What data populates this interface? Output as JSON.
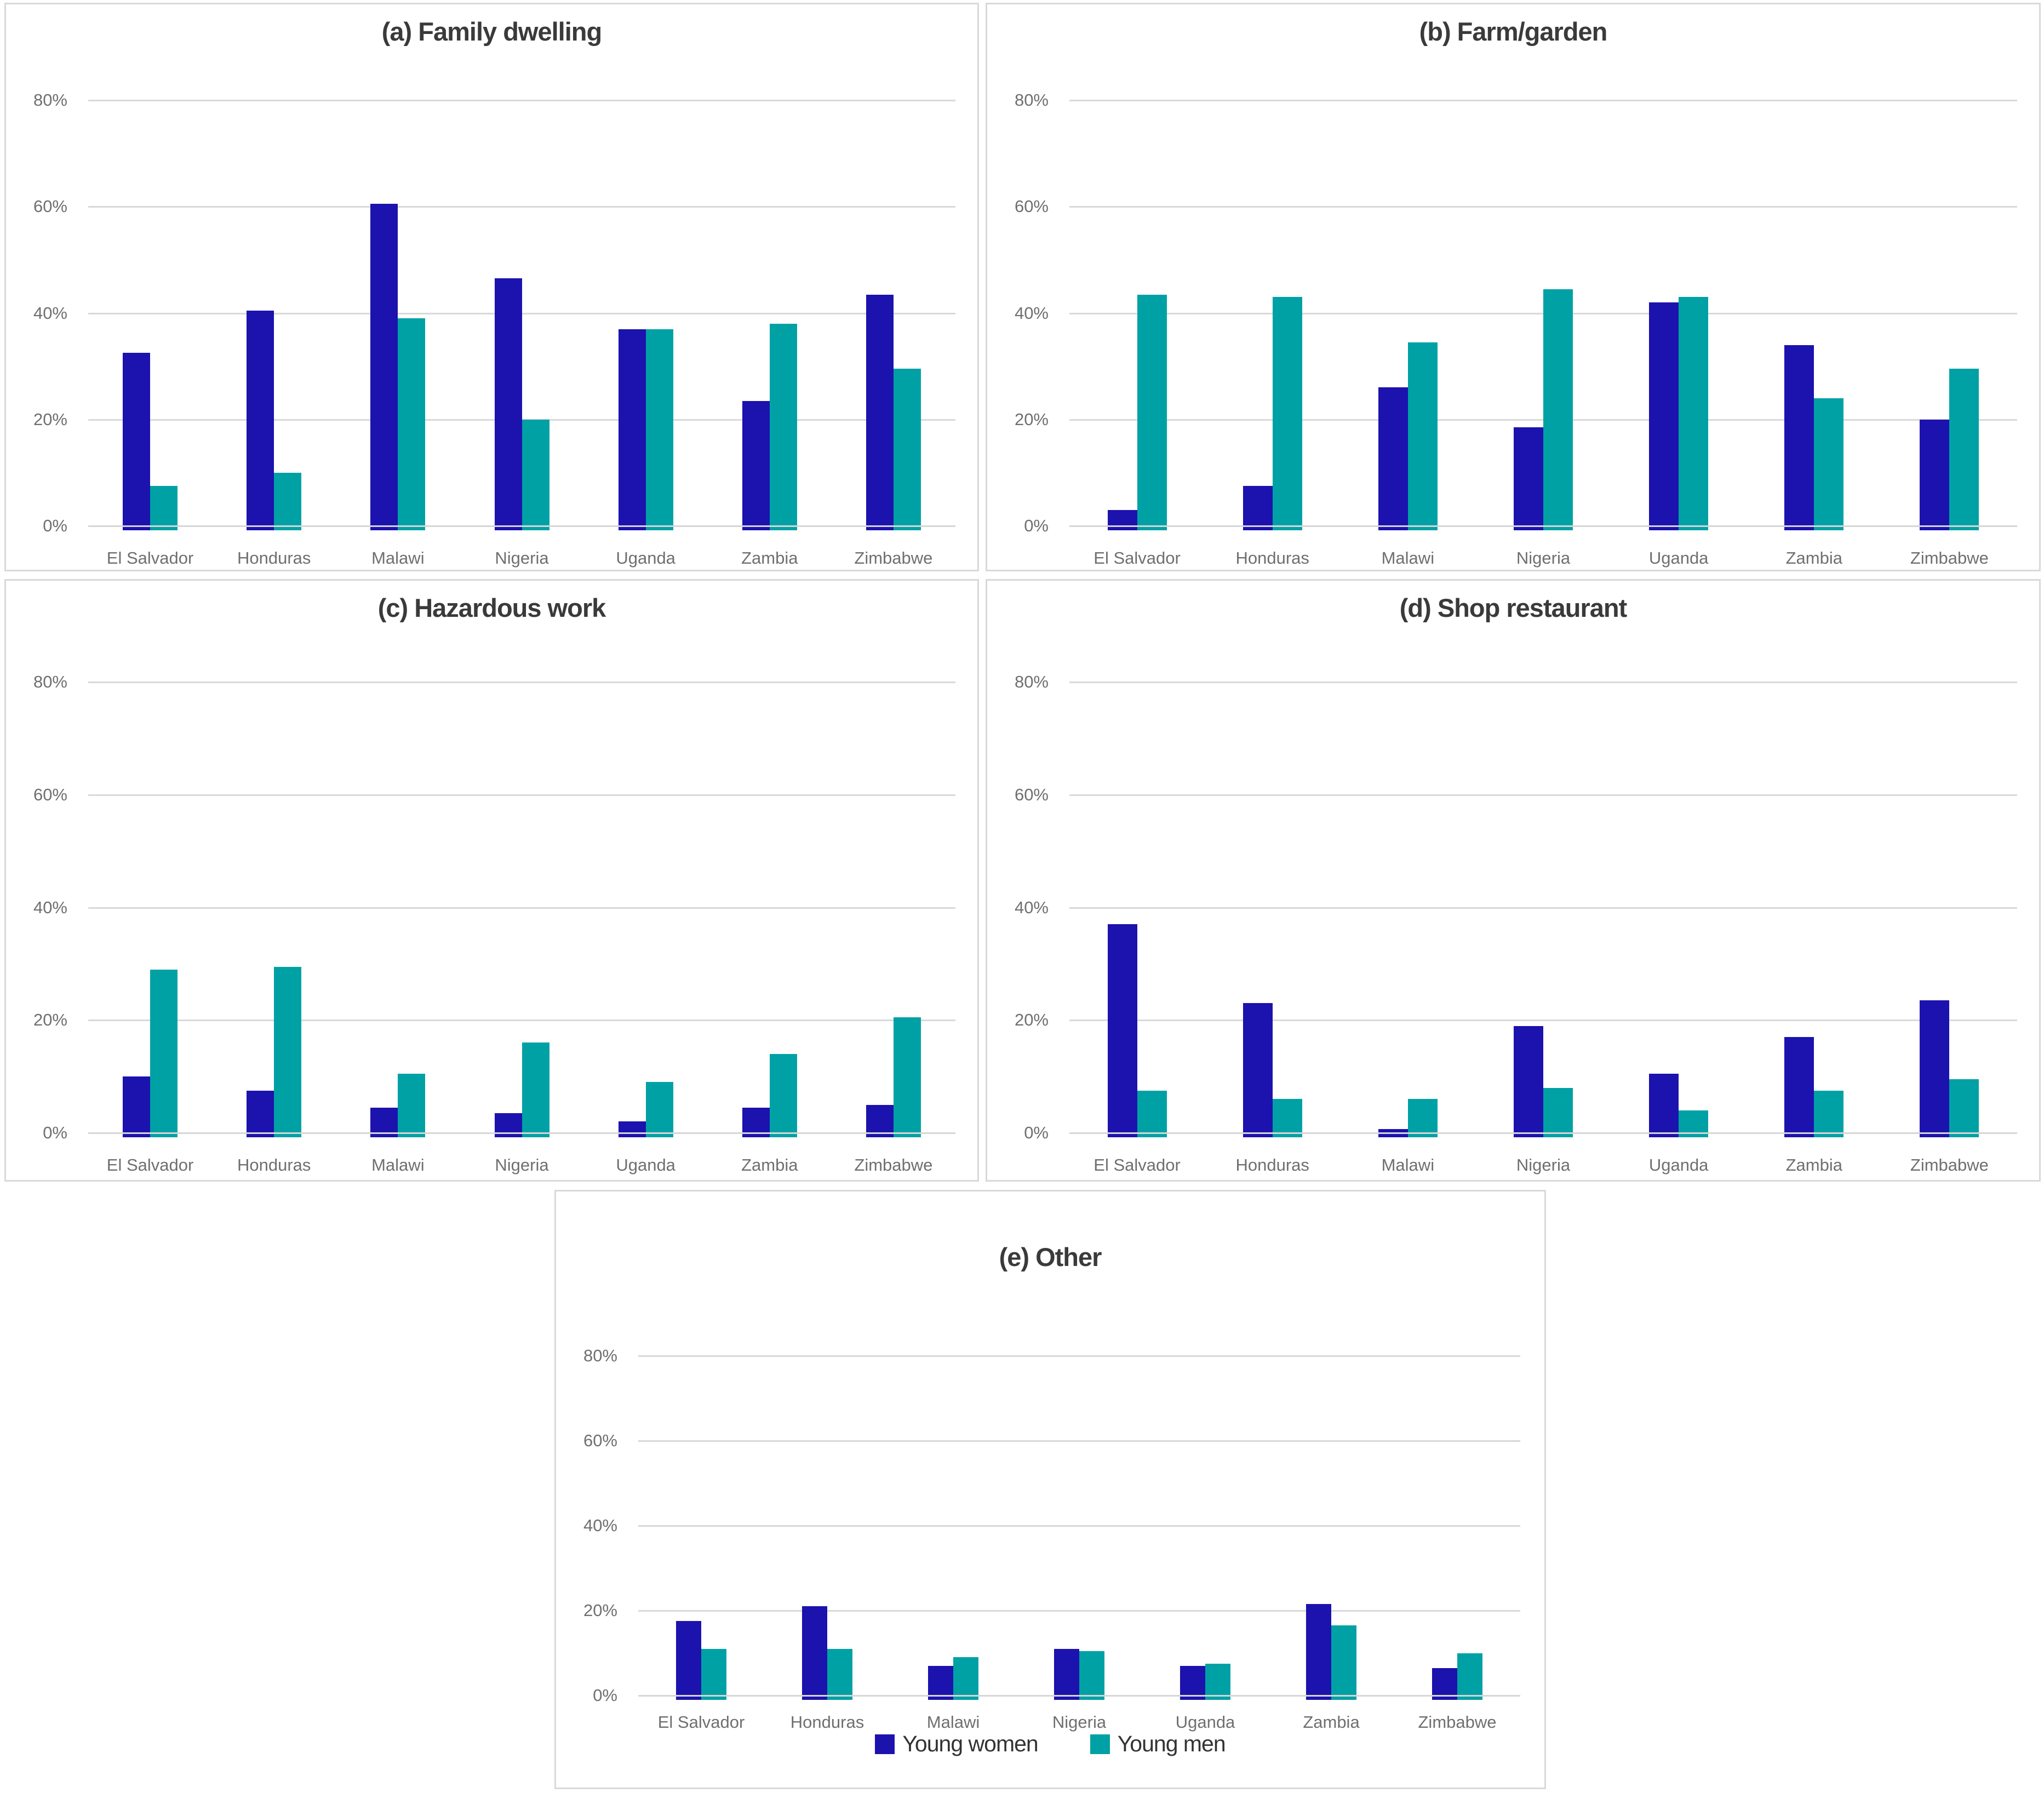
{
  "colors": {
    "young_women": "#1c12ae",
    "young_men": "#00a1a5",
    "gridline": "#d9d9d9",
    "axis_text": "#6f6f6f",
    "title_text": "#3a3a3a"
  },
  "axis": {
    "tick_labels": [
      "0%",
      "20%",
      "40%",
      "60%",
      "80%"
    ],
    "tick_values": [
      0,
      20,
      40,
      60,
      80
    ]
  },
  "legend": {
    "items": [
      {
        "label": "Young women",
        "color": "#1c12ae"
      },
      {
        "label": "Young men",
        "color": "#00a1a5"
      }
    ]
  },
  "chart_data": [
    {
      "type": "bar",
      "title": "(a) Family dwelling",
      "categories": [
        "El Salvador",
        "Honduras",
        "Malawi",
        "Nigeria",
        "Uganda",
        "Zambia",
        "Zimbabwe"
      ],
      "series": [
        {
          "name": "Young women",
          "values": [
            32.5,
            40.5,
            60.5,
            46.5,
            37,
            23.5,
            43.5
          ]
        },
        {
          "name": "Young men",
          "values": [
            7.5,
            10,
            39,
            20,
            37,
            38,
            29.5
          ]
        }
      ],
      "ylabel": "",
      "xlabel": "",
      "ylim": [
        0,
        80
      ],
      "grid": true,
      "legend_position": "none"
    },
    {
      "type": "bar",
      "title": "(b) Farm/garden",
      "categories": [
        "El Salvador",
        "Honduras",
        "Malawi",
        "Nigeria",
        "Uganda",
        "Zambia",
        "Zimbabwe"
      ],
      "series": [
        {
          "name": "Young women",
          "values": [
            3,
            7.5,
            26,
            18.5,
            42,
            34,
            20
          ]
        },
        {
          "name": "Young men",
          "values": [
            43.5,
            43,
            34.5,
            44.5,
            43,
            24,
            29.5
          ]
        }
      ],
      "ylabel": "",
      "xlabel": "",
      "ylim": [
        0,
        80
      ],
      "grid": true,
      "legend_position": "none"
    },
    {
      "type": "bar",
      "title": "(c) Hazardous work",
      "categories": [
        "El Salvador",
        "Honduras",
        "Malawi",
        "Nigeria",
        "Uganda",
        "Zambia",
        "Zimbabwe"
      ],
      "series": [
        {
          "name": "Young women",
          "values": [
            10,
            7.5,
            4.5,
            3.5,
            2,
            4.5,
            5
          ]
        },
        {
          "name": "Young men",
          "values": [
            29,
            29.5,
            10.5,
            16,
            9,
            14,
            20.5
          ]
        }
      ],
      "ylabel": "",
      "xlabel": "",
      "ylim": [
        0,
        80
      ],
      "grid": true,
      "legend_position": "none"
    },
    {
      "type": "bar",
      "title": "(d) Shop restaurant",
      "categories": [
        "El Salvador",
        "Honduras",
        "Malawi",
        "Nigeria",
        "Uganda",
        "Zambia",
        "Zimbabwe"
      ],
      "series": [
        {
          "name": "Young women",
          "values": [
            37,
            23,
            0.7,
            19,
            10.5,
            17,
            23.5
          ]
        },
        {
          "name": "Young men",
          "values": [
            7.5,
            6,
            6,
            8,
            4,
            7.5,
            9.5
          ]
        }
      ],
      "ylabel": "",
      "xlabel": "",
      "ylim": [
        0,
        80
      ],
      "grid": true,
      "legend_position": "none"
    },
    {
      "type": "bar",
      "title": "(e) Other",
      "categories": [
        "El Salvador",
        "Honduras",
        "Malawi",
        "Nigeria",
        "Uganda",
        "Zambia",
        "Zimbabwe"
      ],
      "series": [
        {
          "name": "Young women",
          "values": [
            17.5,
            21,
            7,
            11,
            7,
            21.5,
            6.5
          ]
        },
        {
          "name": "Young men",
          "values": [
            11,
            11,
            9,
            10.5,
            7.5,
            16.5,
            10
          ]
        }
      ],
      "ylabel": "",
      "xlabel": "",
      "ylim": [
        0,
        80
      ],
      "grid": true,
      "legend_position": "bottom"
    }
  ]
}
